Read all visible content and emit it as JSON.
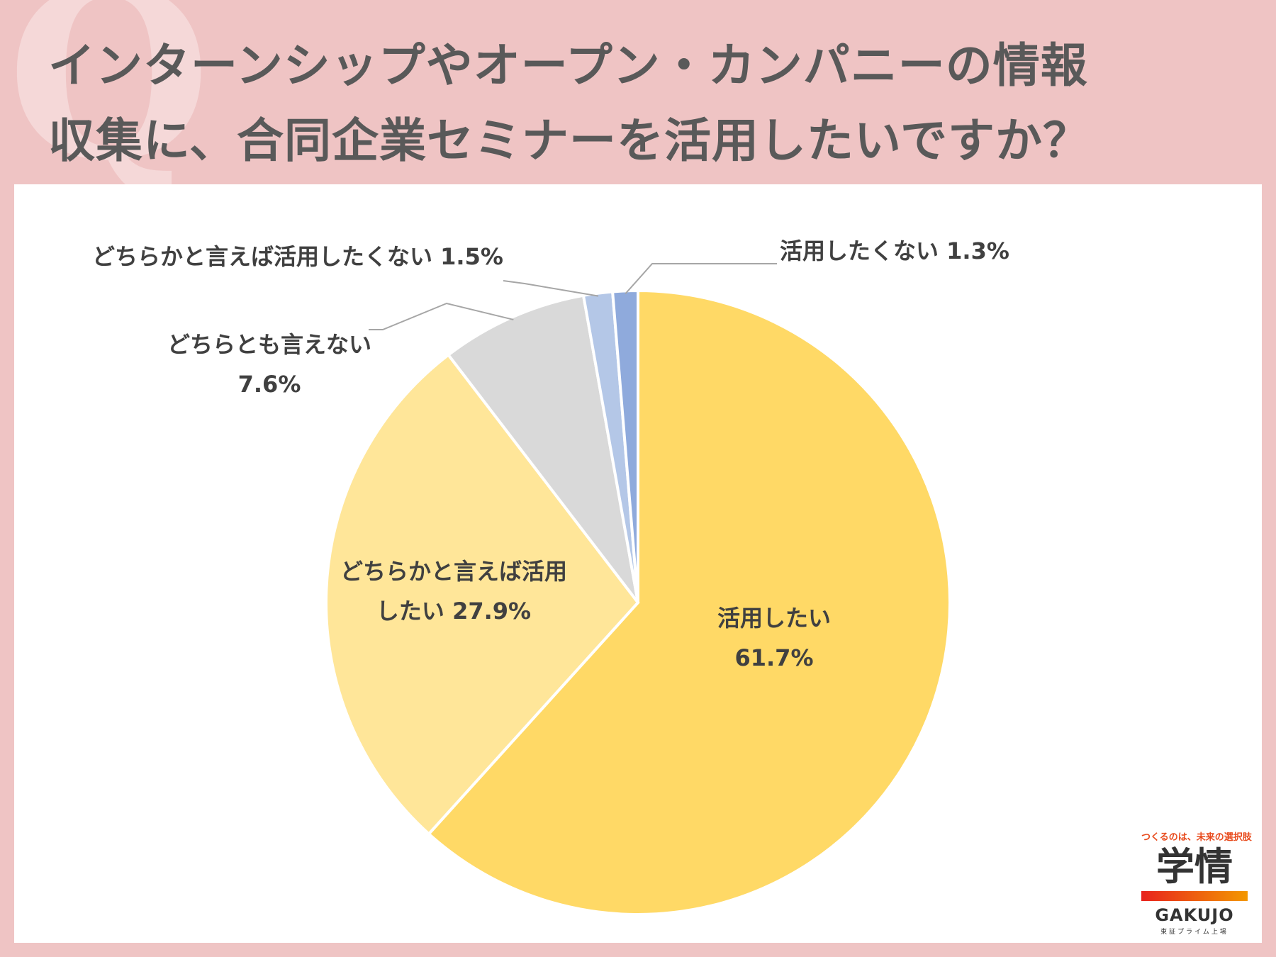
{
  "title": {
    "line1": "インターンシップやオープン・カンパニーの情報",
    "line2": "収集に、合同企業セミナーを活用したいですか？"
  },
  "chart_data": {
    "type": "pie",
    "start_angle": "12 o'clock",
    "direction": "clockwise",
    "slices": [
      {
        "label": "活用したい",
        "value": 61.7,
        "value_text": "61.7%",
        "color": "#ffd966"
      },
      {
        "label": "どちらかと言えば活用したい",
        "label_line1": "どちらかと言えば活用",
        "label_line2": "したい",
        "value": 27.9,
        "value_text": "27.9%",
        "color": "#ffe699"
      },
      {
        "label": "どちらとも言えない",
        "value": 7.6,
        "value_text": "7.6%",
        "color": "#d9d9d9"
      },
      {
        "label": "どちらかと言えば活用したくない",
        "value": 1.5,
        "value_text": "1.5%",
        "color": "#b4c7e7"
      },
      {
        "label": "活用したくない",
        "value": 1.3,
        "value_text": "1.3%",
        "color": "#8faadc"
      }
    ]
  },
  "logo": {
    "tagline": "つくるのは、未来の選択肢",
    "kanji": "学情",
    "name": "GAKUJO",
    "sub": "東証プライム上場"
  }
}
